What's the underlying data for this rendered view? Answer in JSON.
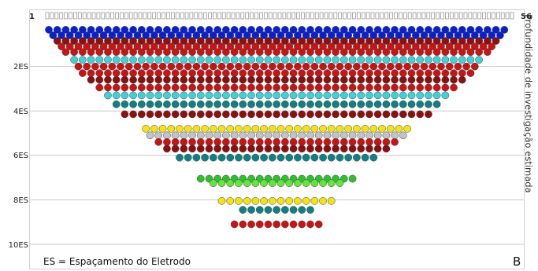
{
  "chart_data": {
    "type": "scatter",
    "title": "",
    "xlabel": "",
    "ylabel": "Profundidade de investigação estimada",
    "x_range": [
      1,
      56
    ],
    "x_tick_labels": [
      "1",
      "56"
    ],
    "y_range": [
      0,
      10
    ],
    "y_tick_labels": [
      "2ES",
      "4ES",
      "6ES",
      "8ES",
      "10ES"
    ],
    "grid": true,
    "legend": "ES = Espaçamento do Eletrodo",
    "panel_label": "B",
    "colors": {
      "blue": "#0a1fd0",
      "dark_red": "#8b1010",
      "red": "#c81414",
      "cyan": "#3fd0d8",
      "teal": "#118080",
      "yellow": "#f2e316",
      "gray": "#c4c4c4",
      "green": "#2ec02e",
      "light_green": "#64e43c"
    },
    "rows": [
      {
        "depth": 0.35,
        "start": 1.0,
        "end": 55.0,
        "color": "blue"
      },
      {
        "depth": 0.6,
        "start": 1.5,
        "end": 54.5,
        "color": "blue"
      },
      {
        "depth": 0.85,
        "start": 2.0,
        "end": 54.0,
        "color": "dark_red"
      },
      {
        "depth": 1.1,
        "start": 2.5,
        "end": 53.5,
        "color": "red"
      },
      {
        "depth": 1.35,
        "start": 3.0,
        "end": 53.0,
        "color": "red"
      },
      {
        "depth": 1.7,
        "start": 4.0,
        "end": 52.0,
        "color": "cyan"
      },
      {
        "depth": 2.0,
        "start": 4.5,
        "end": 51.5,
        "color": "red"
      },
      {
        "depth": 2.3,
        "start": 5.0,
        "end": 51.0,
        "color": "red"
      },
      {
        "depth": 2.6,
        "start": 6.0,
        "end": 50.0,
        "color": "dark_red"
      },
      {
        "depth": 2.95,
        "start": 7.0,
        "end": 49.0,
        "color": "red"
      },
      {
        "depth": 3.3,
        "start": 8.0,
        "end": 48.0,
        "color": "cyan"
      },
      {
        "depth": 3.7,
        "start": 9.0,
        "end": 47.0,
        "color": "teal"
      },
      {
        "depth": 4.15,
        "start": 10.0,
        "end": 46.0,
        "color": "dark_red"
      },
      {
        "depth": 4.8,
        "start": 12.5,
        "end": 43.5,
        "color": "yellow"
      },
      {
        "depth": 5.1,
        "start": 13.0,
        "end": 43.0,
        "color": "gray"
      },
      {
        "depth": 5.4,
        "start": 14.0,
        "end": 42.0,
        "color": "red"
      },
      {
        "depth": 5.7,
        "start": 15.0,
        "end": 41.0,
        "color": "dark_red"
      },
      {
        "depth": 6.1,
        "start": 16.5,
        "end": 39.5,
        "color": "teal"
      },
      {
        "depth": 7.05,
        "start": 19.0,
        "end": 37.0,
        "color": "green"
      },
      {
        "depth": 7.25,
        "start": 20.5,
        "end": 35.5,
        "color": "light_green"
      },
      {
        "depth": 8.05,
        "start": 21.5,
        "end": 34.5,
        "color": "yellow"
      },
      {
        "depth": 8.45,
        "start": 24.0,
        "end": 32.0,
        "color": "teal"
      },
      {
        "depth": 9.1,
        "start": 23.0,
        "end": 33.0,
        "color": "red"
      }
    ]
  }
}
